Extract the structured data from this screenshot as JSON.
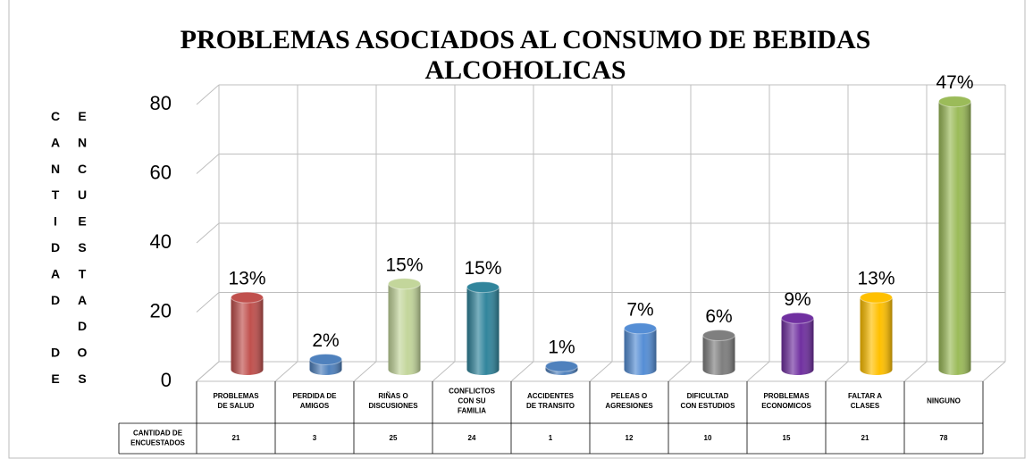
{
  "chart_data": {
    "type": "bar",
    "title": [
      "PROBLEMAS ASOCIADOS AL CONSUMO DE BEBIDAS",
      "ALCOHOLICAS"
    ],
    "y_label": [
      "CANTIDAD DE",
      "ENCUESTADOS"
    ],
    "categories": [
      "PROBLEMAS\nDE SALUD",
      "PERDIDA DE\nAMIGOS",
      "RIÑAS O\nDISCUSIONES",
      "CONFLICTOS\nCON SU\nFAMILIA",
      "ACCIDENTES\nDE TRANSITO",
      "PELEAS O\nAGRESIONES",
      "DIFICULTAD\nCON ESTUDIOS",
      "PROBLEMAS\nECONOMICOS",
      "FALTAR A\nCLASES",
      "NINGUNO"
    ],
    "series": [
      {
        "name": "CANTIDAD DE\nENCUESTADOS",
        "values": [
          21,
          3,
          25,
          24,
          1,
          12,
          10,
          15,
          21,
          78
        ],
        "percent_labels": [
          "13%",
          "2%",
          "15%",
          "15%",
          "1%",
          "7%",
          "6%",
          "9%",
          "13%",
          "47%"
        ],
        "colors": [
          "#c0504d",
          "#4f81bd",
          "#c3d69b",
          "#31859c",
          "#4f81bd",
          "#558ed5",
          "#7f7f7f",
          "#7030a0",
          "#ffc000",
          "#9bbb59"
        ]
      }
    ],
    "ylim": [
      0,
      80
    ],
    "yticks": [
      0,
      20,
      40,
      60,
      80
    ],
    "grid": true
  }
}
